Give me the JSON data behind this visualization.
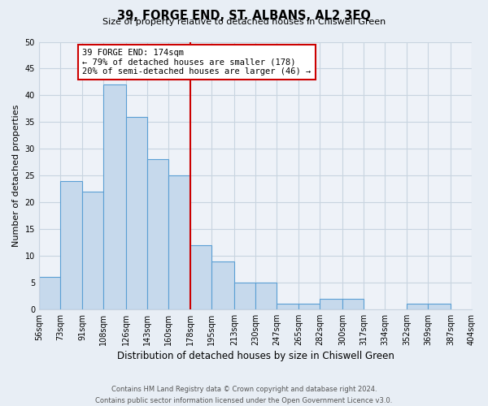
{
  "title": "39, FORGE END, ST. ALBANS, AL2 3EQ",
  "subtitle": "Size of property relative to detached houses in Chiswell Green",
  "xlabel": "Distribution of detached houses by size in Chiswell Green",
  "ylabel": "Number of detached properties",
  "bar_labels": [
    "56sqm",
    "73sqm",
    "91sqm",
    "108sqm",
    "126sqm",
    "143sqm",
    "160sqm",
    "178sqm",
    "195sqm",
    "213sqm",
    "230sqm",
    "247sqm",
    "265sqm",
    "282sqm",
    "300sqm",
    "317sqm",
    "334sqm",
    "352sqm",
    "369sqm",
    "387sqm",
    "404sqm"
  ],
  "bar_values": [
    6,
    24,
    22,
    42,
    36,
    28,
    25,
    12,
    9,
    5,
    5,
    1,
    1,
    2,
    2,
    0,
    0,
    1,
    1,
    0,
    0
  ],
  "bar_bins": [
    56,
    73,
    91,
    108,
    126,
    143,
    160,
    178,
    195,
    213,
    230,
    247,
    265,
    282,
    300,
    317,
    334,
    352,
    369,
    387,
    404
  ],
  "bar_color": "#c6d9ec",
  "bar_edgecolor": "#5a9fd4",
  "vline_x": 178,
  "vline_color": "#cc0000",
  "ylim": [
    0,
    50
  ],
  "yticks": [
    0,
    5,
    10,
    15,
    20,
    25,
    30,
    35,
    40,
    45,
    50
  ],
  "annotation_title": "39 FORGE END: 174sqm",
  "annotation_line1": "← 79% of detached houses are smaller (178)",
  "annotation_line2": "20% of semi-detached houses are larger (46) →",
  "footer1": "Contains HM Land Registry data © Crown copyright and database right 2024.",
  "footer2": "Contains public sector information licensed under the Open Government Licence v3.0.",
  "bg_color": "#e8eef5",
  "plot_bg_color": "#eef2f8",
  "grid_color": "#c8d4e0"
}
